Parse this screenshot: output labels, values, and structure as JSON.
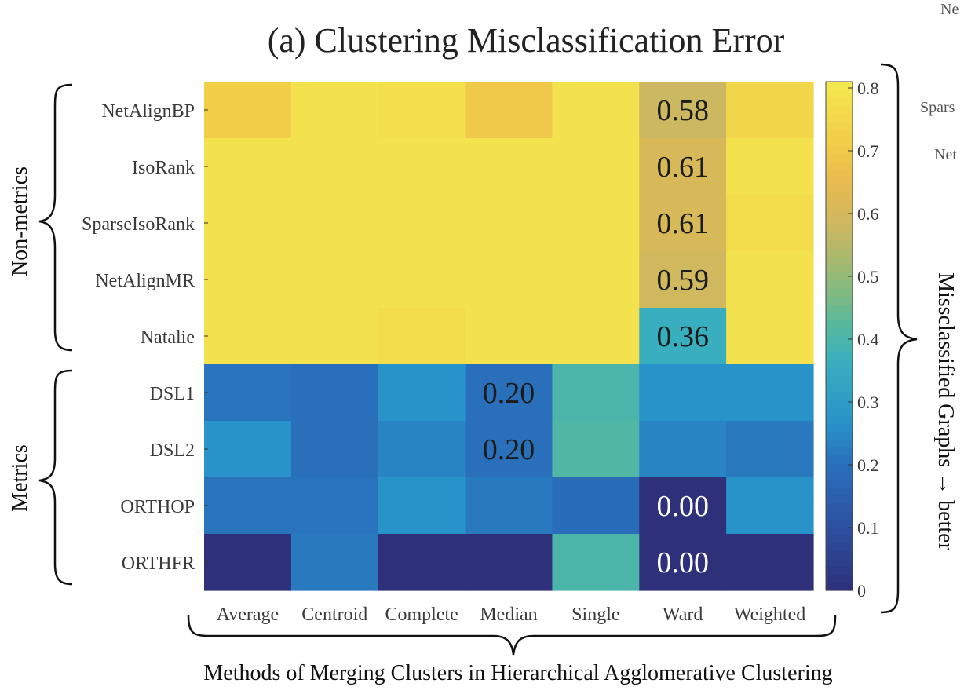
{
  "chart_data": {
    "type": "heatmap",
    "title": "(a) Clustering Misclassification Error",
    "xlabel": "Methods of Merging Clusters in Hierarchical Agglomerative Clustering",
    "colorbar_label": "Missclassified Graphs → better",
    "columns": [
      "Average",
      "Centroid",
      "Complete",
      "Median",
      "Single",
      "Ward",
      "Weighted"
    ],
    "rows": [
      "NetAlignBP",
      "IsoRank",
      "SparseIsoRank",
      "NetAlignMR",
      "Natalie",
      "DSL1",
      "DSL2",
      "ORTHOP",
      "ORTHFR"
    ],
    "row_groups": [
      {
        "label": "Non-metrics",
        "rows": [
          "NetAlignBP",
          "IsoRank",
          "SparseIsoRank",
          "NetAlignMR",
          "Natalie"
        ]
      },
      {
        "label": "Metrics",
        "rows": [
          "DSL1",
          "DSL2",
          "ORTHOP",
          "ORTHFR"
        ]
      }
    ],
    "values": [
      [
        0.72,
        0.79,
        0.78,
        0.7,
        0.79,
        0.58,
        0.75
      ],
      [
        0.79,
        0.79,
        0.79,
        0.79,
        0.79,
        0.61,
        0.79
      ],
      [
        0.79,
        0.79,
        0.79,
        0.79,
        0.79,
        0.61,
        0.77
      ],
      [
        0.79,
        0.79,
        0.79,
        0.79,
        0.79,
        0.59,
        0.79
      ],
      [
        0.79,
        0.79,
        0.77,
        0.79,
        0.79,
        0.36,
        0.79
      ],
      [
        0.21,
        0.2,
        0.27,
        0.2,
        0.4,
        0.27,
        0.27
      ],
      [
        0.27,
        0.2,
        0.24,
        0.2,
        0.41,
        0.24,
        0.22
      ],
      [
        0.21,
        0.21,
        0.27,
        0.22,
        0.19,
        0.0,
        0.27
      ],
      [
        0.0,
        0.22,
        0.0,
        0.0,
        0.4,
        0.0,
        0.0
      ]
    ],
    "annotations": [
      {
        "row": 0,
        "col": 5,
        "text": "0.58"
      },
      {
        "row": 1,
        "col": 5,
        "text": "0.61"
      },
      {
        "row": 2,
        "col": 5,
        "text": "0.61"
      },
      {
        "row": 3,
        "col": 5,
        "text": "0.59"
      },
      {
        "row": 4,
        "col": 5,
        "text": "0.36"
      },
      {
        "row": 5,
        "col": 3,
        "text": "0.20"
      },
      {
        "row": 6,
        "col": 3,
        "text": "0.20"
      },
      {
        "row": 7,
        "col": 5,
        "text": "0.00"
      },
      {
        "row": 8,
        "col": 5,
        "text": "0.00"
      }
    ],
    "colorbar": {
      "range": [
        0,
        0.81
      ],
      "ticks": [
        0,
        0.1,
        0.2,
        0.3,
        0.4,
        0.5,
        0.6,
        0.7,
        0.8
      ],
      "tick_labels": [
        "0",
        "0.1",
        "0.2",
        "0.3",
        "0.4",
        "0.5",
        "0.6",
        "0.7",
        "0.8"
      ],
      "colormap": "parula"
    },
    "grid": false
  },
  "clipped_neighbor_labels": [
    "Ne",
    "Spars",
    "Net"
  ]
}
